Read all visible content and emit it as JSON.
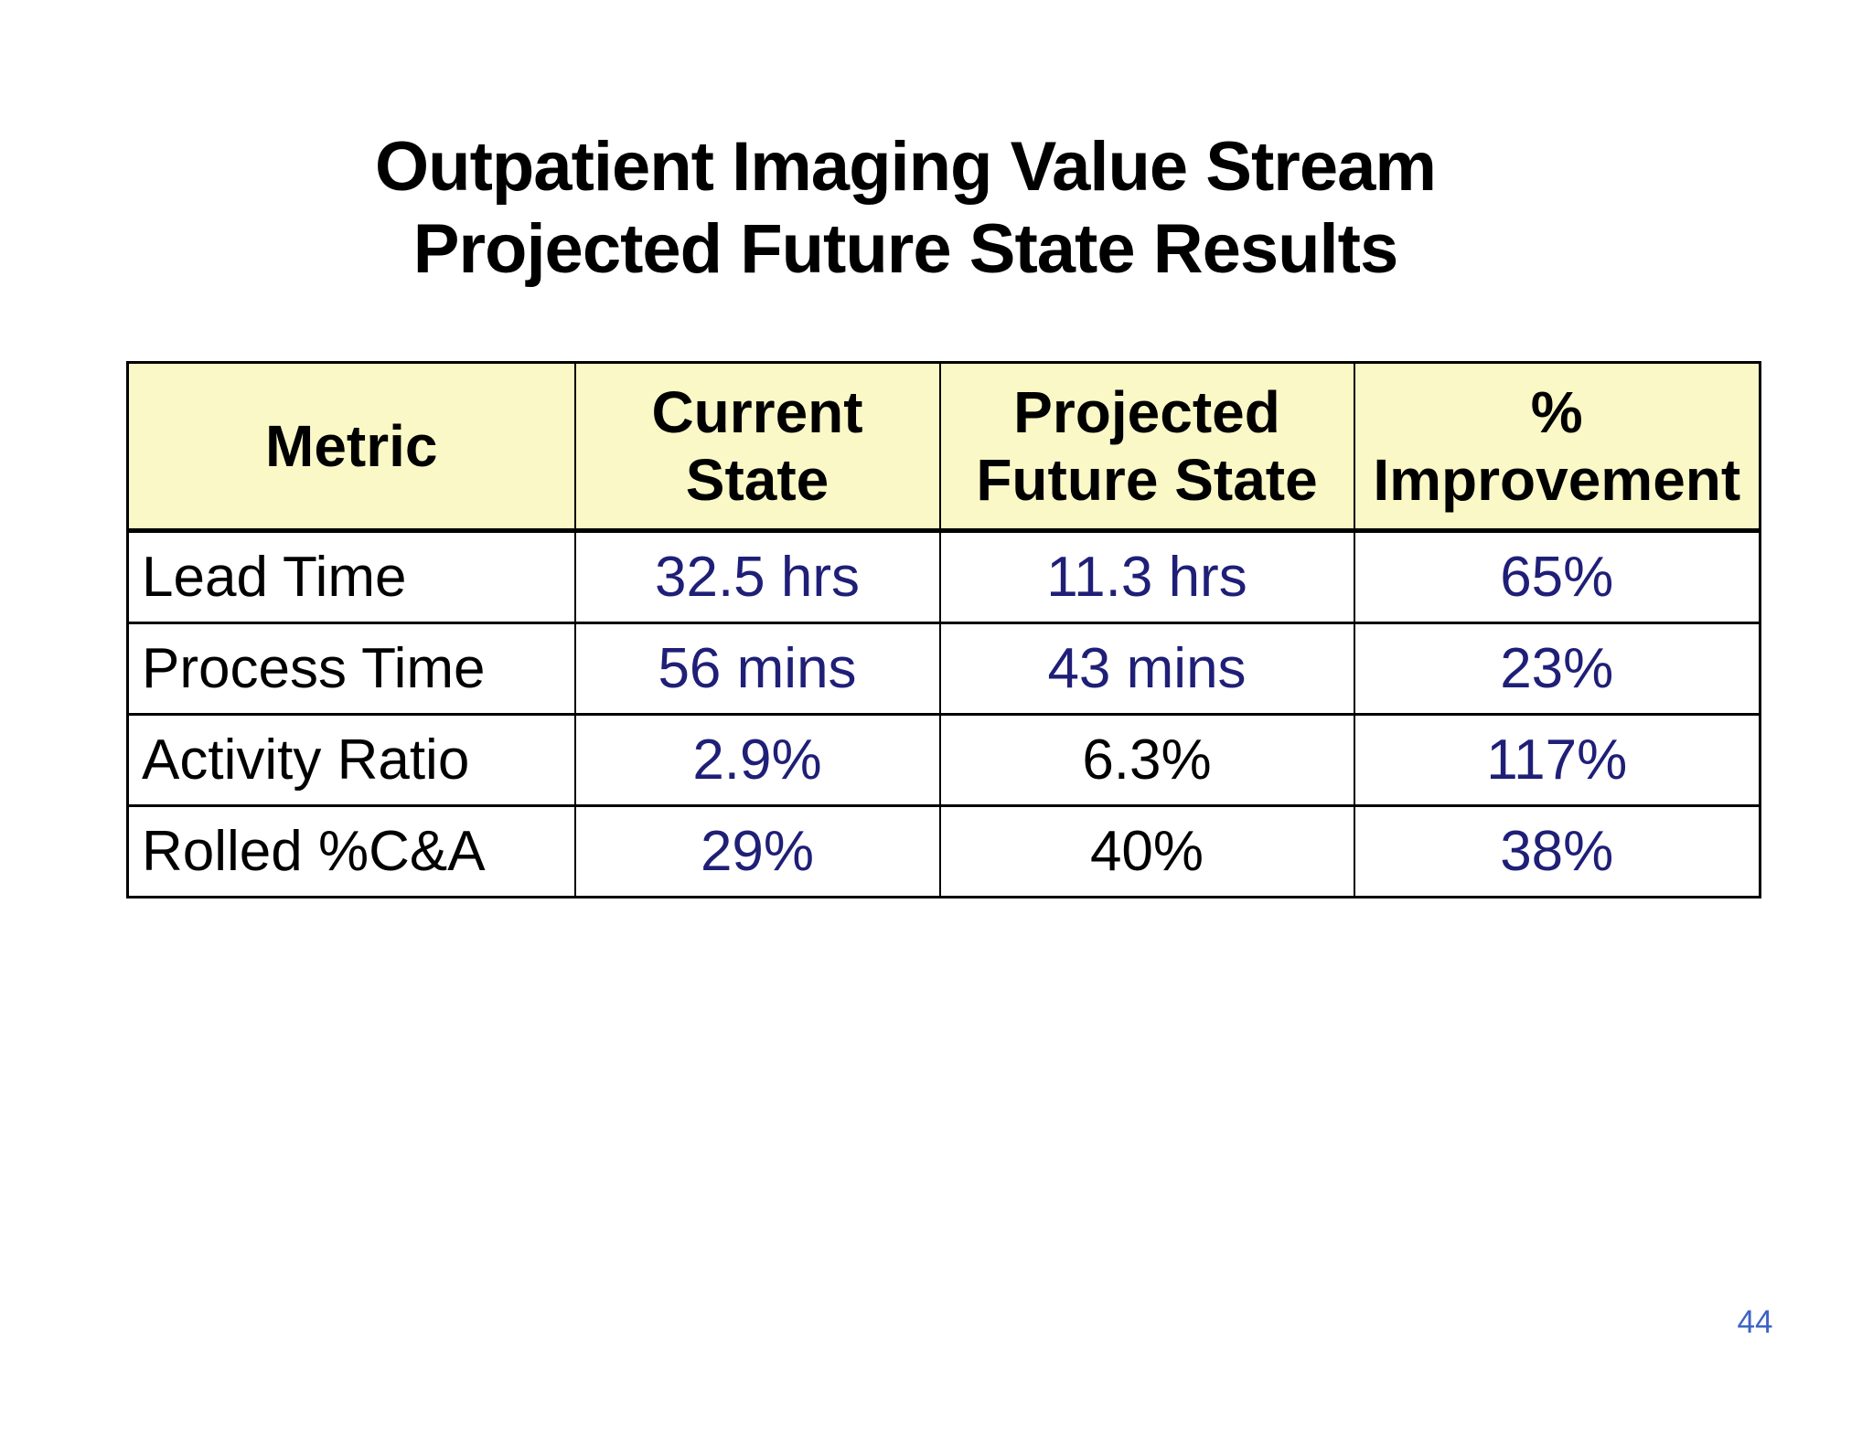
{
  "page": {
    "background": "#FFFFFF",
    "number": "44",
    "number_color": "#3D63C6"
  },
  "title": {
    "line1": "Outpatient Imaging Value Stream",
    "line2": "Projected Future State Results",
    "color": "#000000"
  },
  "colors": {
    "header_background": "#FAF8C6",
    "border": "#000000",
    "value_navy": "#1F1F78",
    "value_black": "#000000"
  },
  "table": {
    "header": {
      "columns": [
        "Metric",
        "Current\nState",
        "Projected\nFuture State",
        "%\nImprovement"
      ]
    },
    "rows": [
      {
        "metric": "Lead Time",
        "cells": [
          {
            "text": "32.5 hrs",
            "color": "#1F1F78"
          },
          {
            "text": "11.3 hrs",
            "color": "#1F1F78"
          },
          {
            "text": "65%",
            "color": "#1F1F78"
          }
        ]
      },
      {
        "metric": "Process Time",
        "cells": [
          {
            "text": "56 mins",
            "color": "#1F1F78"
          },
          {
            "text": "43 mins",
            "color": "#1F1F78"
          },
          {
            "text": "23%",
            "color": "#1F1F78"
          }
        ]
      },
      {
        "metric": "Activity Ratio",
        "cells": [
          {
            "text": "2.9%",
            "color": "#1F1F78"
          },
          {
            "text": "6.3%",
            "color": "#000000"
          },
          {
            "text": "117%",
            "color": "#1F1F78"
          }
        ]
      },
      {
        "metric": "Rolled %C&A",
        "cells": [
          {
            "text": "29%",
            "color": "#1F1F78"
          },
          {
            "text": "40%",
            "color": "#000000"
          },
          {
            "text": "38%",
            "color": "#1F1F78"
          }
        ]
      }
    ]
  }
}
